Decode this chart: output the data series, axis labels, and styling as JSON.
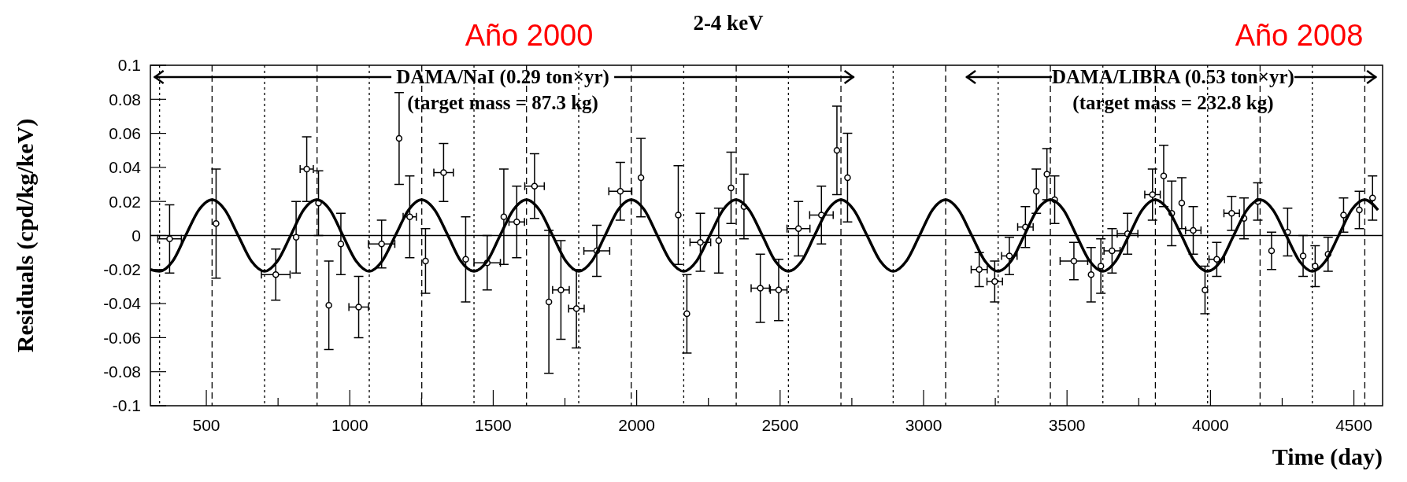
{
  "chart_data": {
    "type": "scatter",
    "title": "2-4 keV",
    "xlabel": "Time (day)",
    "ylabel": "Residuals (cpd/kg/keV)",
    "annotations": [
      "DAMA/NaI (0.29 ton×yr)",
      "(target mass = 87.3 kg)",
      "DAMA/LIBRA (0.53 ton×yr)",
      "(target mass = 232.8 kg)",
      "Año 2000",
      "Año 2008"
    ],
    "xlim": [
      305,
      4600
    ],
    "ylim": [
      -0.1,
      0.1
    ],
    "xticks": [
      500,
      {
        "value": 750,
        "label": null
      },
      1000,
      {
        "value": 1250,
        "label": null
      },
      1500,
      {
        "value": 1750,
        "label": null
      },
      2000,
      {
        "value": 2250,
        "label": null
      },
      2500,
      {
        "value": 2750,
        "label": null
      },
      3000,
      {
        "value": 3250,
        "label": null
      },
      3500,
      {
        "value": 3750,
        "label": null
      },
      4000,
      {
        "value": 4250,
        "label": null
      },
      4500
    ],
    "yticks": [
      -0.1,
      -0.08,
      -0.06,
      -0.04,
      -0.02,
      0,
      0.02,
      0.04,
      0.06,
      0.08,
      0.1
    ],
    "marker": "circle",
    "ref_lines": [
      {
        "axis": "y",
        "value": 0,
        "color": "#000000",
        "line_style": "solid"
      },
      {
        "axis": "x",
        "value": 520,
        "line_style": "dashed"
      },
      {
        "axis": "x",
        "value": 886,
        "line_style": "dashed"
      },
      {
        "axis": "x",
        "value": 1251,
        "line_style": "dashed"
      },
      {
        "axis": "x",
        "value": 1616,
        "line_style": "dashed"
      },
      {
        "axis": "x",
        "value": 1981,
        "line_style": "dashed"
      },
      {
        "axis": "x",
        "value": 2347,
        "line_style": "dashed"
      },
      {
        "axis": "x",
        "value": 2712,
        "line_style": "dashed"
      },
      {
        "axis": "x",
        "value": 3077,
        "line_style": "dashed"
      },
      {
        "axis": "x",
        "value": 3442,
        "line_style": "dashed"
      },
      {
        "axis": "x",
        "value": 3808,
        "line_style": "dashed"
      },
      {
        "axis": "x",
        "value": 4173,
        "line_style": "dashed"
      },
      {
        "axis": "x",
        "value": 4538,
        "line_style": "dashed"
      },
      {
        "axis": "x",
        "value": 337,
        "line_style": "dotted"
      },
      {
        "axis": "x",
        "value": 703,
        "line_style": "dotted"
      },
      {
        "axis": "x",
        "value": 1068,
        "line_style": "dotted"
      },
      {
        "axis": "x",
        "value": 1433,
        "line_style": "dotted"
      },
      {
        "axis": "x",
        "value": 1798,
        "line_style": "dotted"
      },
      {
        "axis": "x",
        "value": 2164,
        "line_style": "dotted"
      },
      {
        "axis": "x",
        "value": 2529,
        "line_style": "dotted"
      },
      {
        "axis": "x",
        "value": 2894,
        "line_style": "dotted"
      },
      {
        "axis": "x",
        "value": 3260,
        "line_style": "dotted"
      },
      {
        "axis": "x",
        "value": 3625,
        "line_style": "dotted"
      },
      {
        "axis": "x",
        "value": 3990,
        "line_style": "dotted"
      },
      {
        "axis": "x",
        "value": 4355,
        "line_style": "dotted"
      }
    ],
    "series": [
      {
        "type": "scatter",
        "color": "#000000",
        "x": [
          372,
          534,
          742,
          813,
          850,
          891,
          927,
          969,
          1031,
          1111,
          1172,
          1209,
          1264,
          1327,
          1404,
          1479,
          1537,
          1582,
          1644,
          1694,
          1736,
          1790,
          1861,
          1943,
          2015,
          2145,
          2175,
          2222,
          2286,
          2329,
          2374,
          2431,
          2495,
          2564,
          2644,
          2698,
          2735,
          3194,
          3248,
          3299,
          3355,
          3393,
          3430,
          3457,
          3524,
          3584,
          3618,
          3657,
          3711,
          3798,
          3837,
          3865,
          3900,
          3940,
          3981,
          4022,
          4074,
          4117,
          4165,
          4213,
          4269,
          4323,
          4365,
          4410,
          4464,
          4519,
          4565
        ],
        "values": [
          -0.002,
          0.007,
          -0.023,
          -0.001,
          0.039,
          0.019,
          -0.041,
          -0.005,
          -0.042,
          -0.005,
          0.057,
          0.011,
          -0.015,
          0.037,
          -0.014,
          -0.016,
          0.011,
          0.008,
          0.029,
          -0.039,
          -0.032,
          -0.043,
          -0.009,
          0.026,
          0.034,
          0.012,
          -0.046,
          -0.004,
          -0.003,
          0.028,
          0.017,
          -0.031,
          -0.032,
          0.004,
          0.012,
          0.05,
          0.034,
          -0.02,
          -0.027,
          -0.012,
          0.005,
          0.026,
          0.036,
          0.021,
          -0.015,
          -0.023,
          -0.018,
          -0.009,
          0.001,
          0.024,
          0.035,
          0.013,
          0.019,
          0.003,
          -0.032,
          -0.014,
          0.013,
          0.01,
          0.02,
          -0.009,
          0.002,
          -0.012,
          -0.018,
          -0.011,
          0.012,
          0.015,
          0.022
        ],
        "errors": [
          0.02,
          0.032,
          0.015,
          0.021,
          0.019,
          0.019,
          0.026,
          0.018,
          0.018,
          0.014,
          0.027,
          0.024,
          0.019,
          0.017,
          0.025,
          0.016,
          0.028,
          0.021,
          0.019,
          0.042,
          0.029,
          0.023,
          0.015,
          0.017,
          0.023,
          0.029,
          0.023,
          0.017,
          0.019,
          0.021,
          0.019,
          0.02,
          0.018,
          0.016,
          0.017,
          0.026,
          0.026,
          0.01,
          0.012,
          0.011,
          0.012,
          0.013,
          0.015,
          0.014,
          0.011,
          0.016,
          0.016,
          0.013,
          0.012,
          0.015,
          0.018,
          0.019,
          0.015,
          0.014,
          0.014,
          0.01,
          0.01,
          0.012,
          0.011,
          0.011,
          0.014,
          0.012,
          0.012,
          0.01,
          0.01,
          0.011,
          0.013
        ],
        "xerrors": [
          41,
          null,
          50,
          null,
          23,
          null,
          null,
          null,
          34,
          46,
          null,
          23,
          null,
          34,
          null,
          46,
          null,
          27,
          34,
          null,
          29,
          27,
          45,
          40,
          null,
          null,
          null,
          36,
          null,
          null,
          null,
          32,
          29,
          40,
          41,
          null,
          null,
          28,
          27,
          27,
          27,
          null,
          null,
          null,
          48,
          null,
          null,
          28,
          36,
          27,
          null,
          null,
          null,
          27,
          null,
          27,
          27,
          null,
          null,
          null,
          null,
          null,
          null,
          null,
          null,
          null,
          null
        ]
      },
      {
        "type": "line",
        "color": "#000000",
        "marker": "none",
        "x": [
          305,
          337,
          383,
          428,
          474,
          520,
          565,
          611,
          657,
          703,
          748,
          794,
          839,
          885,
          931,
          976,
          1022,
          1068,
          1113,
          1159,
          1205,
          1250,
          1296,
          1342,
          1387,
          1433,
          1479,
          1524,
          1570,
          1616,
          1661,
          1707,
          1753,
          1798,
          1844,
          1890,
          1935,
          1981,
          2027,
          2072,
          2118,
          2164,
          2209,
          2255,
          2301,
          2346,
          2392,
          2438,
          2483,
          2529,
          2575,
          2620,
          2666,
          2712,
          2757,
          2803,
          2849,
          2894,
          2940,
          2986,
          3031,
          3077,
          3122,
          3168,
          3214,
          3259,
          3305,
          3351,
          3396,
          3442,
          3488,
          3533,
          3579,
          3625,
          3670,
          3716,
          3762,
          3807,
          3853,
          3899,
          3944,
          3990,
          4036,
          4081,
          4127,
          4173,
          4218,
          4264,
          4310,
          4355,
          4401,
          4447,
          4492,
          4538,
          4584
        ],
        "values": [
          -0.02,
          -0.021,
          -0.015,
          0,
          0.015,
          0.021,
          0.015,
          0,
          -0.015,
          -0.021,
          -0.015,
          0,
          0.015,
          0.021,
          0.015,
          0,
          -0.015,
          -0.021,
          -0.015,
          0,
          0.015,
          0.021,
          0.015,
          0,
          -0.015,
          -0.021,
          -0.015,
          0,
          0.015,
          0.021,
          0.015,
          0,
          -0.015,
          -0.021,
          -0.015,
          0,
          0.015,
          0.021,
          0.015,
          0,
          -0.015,
          -0.021,
          -0.015,
          0,
          0.015,
          0.021,
          0.015,
          0,
          -0.015,
          -0.021,
          -0.015,
          0,
          0.015,
          0.021,
          0.015,
          0,
          -0.015,
          -0.021,
          -0.015,
          0,
          0.015,
          0.021,
          0.015,
          0,
          -0.015,
          -0.021,
          -0.015,
          0,
          0.015,
          0.021,
          0.015,
          0,
          -0.015,
          -0.021,
          -0.015,
          0,
          0.015,
          0.021,
          0.015,
          0,
          -0.015,
          -0.021,
          -0.015,
          0,
          0.015,
          0.021,
          0.015,
          0,
          -0.015,
          -0.021,
          -0.015,
          0,
          0.015,
          0.021,
          0.015
        ]
      }
    ]
  }
}
